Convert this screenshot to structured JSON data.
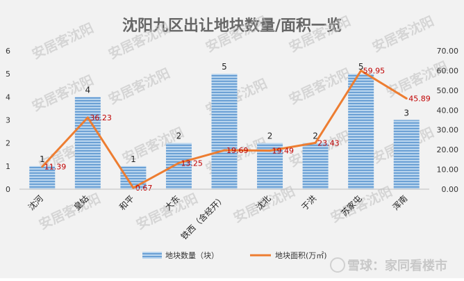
{
  "chart_data": {
    "type": "bar",
    "title": "沈阳九区出让地块数量/面积一览",
    "categories": [
      "沈河",
      "皇姑",
      "和平",
      "大东",
      "铁西（含经开）",
      "沈北",
      "于洪",
      "苏家屯",
      "浑南"
    ],
    "series": [
      {
        "name": "地块数量（块）",
        "type": "bar",
        "axis": "left",
        "values": [
          1,
          4,
          1,
          2,
          5,
          2,
          2,
          5,
          3
        ]
      },
      {
        "name": "地块面积(万㎡)",
        "type": "line",
        "axis": "right",
        "values": [
          11.39,
          36.23,
          0.67,
          13.25,
          19.69,
          19.49,
          23.43,
          59.95,
          45.89
        ]
      }
    ],
    "bar_labels": [
      "1",
      "4",
      "1",
      "2",
      "5",
      "2",
      "2",
      "5",
      "3"
    ],
    "line_labels": [
      "11.39",
      "36.23",
      "0.67",
      "13.25",
      "19.69",
      "19.49",
      "23.43",
      "59.95",
      "45.89"
    ],
    "y_left": {
      "min": 0,
      "max": 6,
      "ticks": [
        "0",
        "1",
        "2",
        "3",
        "4",
        "5",
        "6"
      ]
    },
    "y_right": {
      "min": 0,
      "max": 70,
      "ticks": [
        "0.00",
        "10.00",
        "20.00",
        "30.00",
        "40.00",
        "50.00",
        "60.00",
        "70.00"
      ]
    },
    "grid": false,
    "legend_position": "bottom",
    "colors": {
      "bar_fill": "#9dc3e6",
      "bar_stripe": "#4f8fcc",
      "line": "#ed7d31",
      "line_label": "#c00000",
      "background": "#f2f2f2"
    },
    "watermark_text": "安居客沈阳",
    "source_watermark": "雪球：家同看楼市"
  }
}
